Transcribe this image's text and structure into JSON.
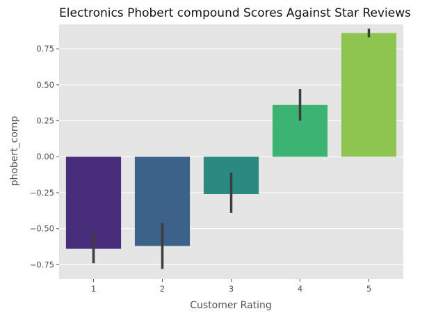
{
  "chart_data": {
    "type": "bar",
    "title": "Electronics Phobert compound Scores Against Star Reviews",
    "xlabel": "Customer Rating",
    "ylabel": "phobert_comp",
    "categories": [
      "1",
      "2",
      "3",
      "4",
      "5"
    ],
    "values": [
      -0.64,
      -0.62,
      -0.26,
      0.36,
      0.86
    ],
    "error_bars": [
      [
        -0.74,
        -0.52
      ],
      [
        -0.78,
        -0.46
      ],
      [
        -0.39,
        -0.11
      ],
      [
        0.25,
        0.47
      ],
      [
        0.83,
        0.89
      ]
    ],
    "colors": [
      "#472d7b",
      "#3b6289",
      "#2a8a82",
      "#3cb372",
      "#8ec550"
    ],
    "error_bar_color": "#3d3d3d",
    "ylim": [
      -0.85,
      0.92
    ],
    "yticks": [
      -0.75,
      -0.5,
      -0.25,
      0.0,
      0.25,
      0.5,
      0.75
    ],
    "ytick_labels": [
      "−0.75",
      "−0.50",
      "−0.25",
      "0.00",
      "0.25",
      "0.50",
      "0.75"
    ],
    "grid": true,
    "background": "#e5e5e5",
    "grid_color": "#ffffff"
  }
}
